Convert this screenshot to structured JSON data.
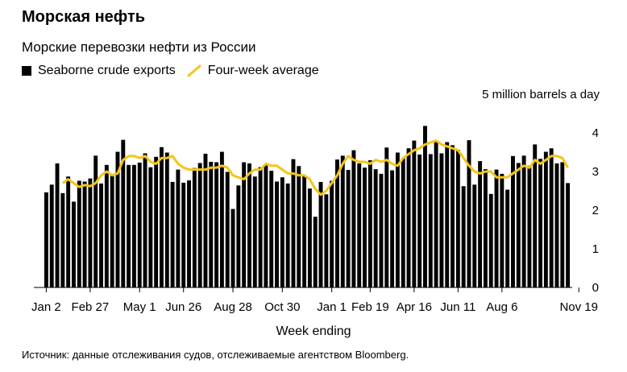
{
  "header": {
    "title": "Морская нефть",
    "subtitle": "Морские перевозки нефти из России"
  },
  "legend": {
    "bars_label": "Seaborne crude exports",
    "line_label": "Four-week average"
  },
  "source": "Источник: данные отслеживания судов, отслеживаемые агентством Bloomberg.",
  "colors": {
    "bars": "#000000",
    "line": "#f5c518",
    "axis": "#000000"
  },
  "chart_data": {
    "type": "bar",
    "y_unit_label": "5 million barrels a day",
    "xlabel": "Week ending",
    "ylim": [
      0,
      5
    ],
    "yticks": [
      0,
      1,
      2,
      3,
      4
    ],
    "xtick_labels": [
      "Jan 2",
      "Feb 27",
      "May 1",
      "Jun 26",
      "Aug 28",
      "Oct 30",
      "Jan 1",
      "Feb 19",
      "Apr 16",
      "Jun 11",
      "Aug 6",
      "Nov 19"
    ],
    "xtick_positions": [
      0,
      8,
      17,
      25,
      34,
      43,
      52,
      59,
      67,
      75,
      83,
      97
    ],
    "series": [
      {
        "name": "Seaborne crude exports",
        "type": "bar",
        "values": [
          2.46,
          2.66,
          3.21,
          2.44,
          2.87,
          2.22,
          2.76,
          2.74,
          2.82,
          3.41,
          2.69,
          3.17,
          2.89,
          3.51,
          3.82,
          3.17,
          3.17,
          3.23,
          3.47,
          3.11,
          3.38,
          3.63,
          3.49,
          2.73,
          3.05,
          2.71,
          2.77,
          3.09,
          3.22,
          3.46,
          3.25,
          3.24,
          3.51,
          2.99,
          2.03,
          2.64,
          3.24,
          3.21,
          2.87,
          3.11,
          3.18,
          3.02,
          2.74,
          2.85,
          2.69,
          3.32,
          3.14,
          2.89,
          2.56,
          1.83,
          2.73,
          2.41,
          2.76,
          3.31,
          3.41,
          3.04,
          3.55,
          3.21,
          3.1,
          3.29,
          3.06,
          2.94,
          3.62,
          3.03,
          3.49,
          3.34,
          3.6,
          3.8,
          3.44,
          4.18,
          3.45,
          3.76,
          3.47,
          3.76,
          3.68,
          3.56,
          2.62,
          3.81,
          2.66,
          3.27,
          3.06,
          2.42,
          3.05,
          2.94,
          2.53,
          3.4,
          3.22,
          3.41,
          3.15,
          3.7,
          3.33,
          3.51,
          3.6,
          3.21,
          3.24,
          2.7
        ]
      },
      {
        "name": "Four-week average",
        "type": "line",
        "values": [
          null,
          null,
          null,
          2.7,
          2.8,
          2.7,
          2.6,
          2.65,
          2.62,
          2.7,
          2.9,
          3.0,
          2.9,
          2.95,
          3.3,
          3.4,
          3.4,
          3.35,
          3.4,
          3.25,
          3.2,
          3.35,
          3.35,
          3.4,
          3.2,
          3.1,
          3.05,
          3.05,
          3.05,
          3.05,
          3.1,
          3.1,
          3.15,
          3.1,
          2.9,
          2.85,
          2.8,
          2.95,
          3.05,
          3.05,
          3.2,
          3.15,
          3.15,
          3.05,
          2.95,
          2.95,
          2.9,
          2.9,
          2.8,
          2.55,
          2.4,
          2.5,
          2.7,
          2.9,
          3.2,
          3.4,
          3.3,
          3.25,
          3.25,
          3.2,
          3.3,
          3.25,
          3.3,
          3.2,
          3.15,
          3.35,
          3.45,
          3.55,
          3.6,
          3.7,
          3.75,
          3.8,
          3.7,
          3.65,
          3.6,
          3.55,
          3.35,
          3.15,
          3.0,
          2.95,
          3.0,
          3.0,
          2.85,
          2.85,
          2.85,
          2.95,
          3.05,
          3.15,
          3.1,
          3.3,
          3.2,
          3.3,
          3.4,
          3.4,
          3.35,
          3.1
        ]
      }
    ],
    "grid": false,
    "legend_position": "top-left"
  }
}
